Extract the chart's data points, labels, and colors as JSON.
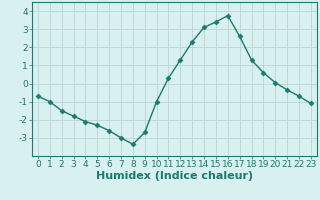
{
  "x": [
    0,
    1,
    2,
    3,
    4,
    5,
    6,
    7,
    8,
    9,
    10,
    11,
    12,
    13,
    14,
    15,
    16,
    17,
    18,
    19,
    20,
    21,
    22,
    23
  ],
  "y": [
    -0.7,
    -1.0,
    -1.5,
    -1.8,
    -2.1,
    -2.3,
    -2.6,
    -3.0,
    -3.35,
    -2.7,
    -1.0,
    0.3,
    1.3,
    2.3,
    3.1,
    3.4,
    3.75,
    2.6,
    1.3,
    0.6,
    0.05,
    -0.35,
    -0.7,
    -1.1
  ],
  "line_color": "#1a7a6e",
  "marker": "D",
  "marker_size": 2.5,
  "background_color": "#d8f0f0",
  "grid_color": "#c0d8d8",
  "xlabel": "Humidex (Indice chaleur)",
  "ylim": [
    -4,
    4.5
  ],
  "xlim": [
    -0.5,
    23.5
  ],
  "xticks": [
    0,
    1,
    2,
    3,
    4,
    5,
    6,
    7,
    8,
    9,
    10,
    11,
    12,
    13,
    14,
    15,
    16,
    17,
    18,
    19,
    20,
    21,
    22,
    23
  ],
  "yticks": [
    -3,
    -2,
    -1,
    0,
    1,
    2,
    3,
    4
  ],
  "tick_color": "#1a7a6e",
  "label_color": "#1a7a6e",
  "font_size": 6.5,
  "xlabel_fontsize": 8.0
}
